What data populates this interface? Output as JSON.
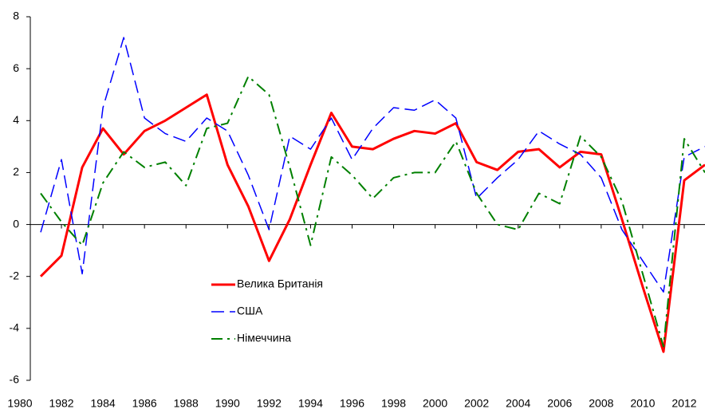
{
  "chart_data": {
    "type": "line",
    "x": [
      1981,
      1982,
      1983,
      1984,
      1985,
      1986,
      1987,
      1988,
      1989,
      1990,
      1991,
      1992,
      1993,
      1994,
      1995,
      1996,
      1997,
      1998,
      1999,
      2000,
      2001,
      2002,
      2003,
      2004,
      2005,
      2006,
      2007,
      2008,
      2009,
      2010,
      2011,
      2012,
      2013
    ],
    "series": [
      {
        "name": "Велика Британія",
        "color": "#ff0000",
        "line_style": "solid",
        "values": [
          -2.0,
          -1.2,
          2.2,
          3.7,
          2.7,
          3.6,
          4.0,
          4.5,
          5.0,
          2.3,
          0.7,
          -1.4,
          0.2,
          2.3,
          4.3,
          3.0,
          2.9,
          3.3,
          3.6,
          3.5,
          3.9,
          2.4,
          2.1,
          2.8,
          2.9,
          2.2,
          2.8,
          2.7,
          0.2,
          -2.4,
          -4.9,
          1.7,
          2.3
        ]
      },
      {
        "name": "США",
        "color": "#0000ff",
        "line_style": "dashed",
        "values": [
          -0.3,
          2.5,
          -1.9,
          4.5,
          7.2,
          4.1,
          3.5,
          3.2,
          4.1,
          3.6,
          1.9,
          -0.2,
          3.4,
          2.9,
          4.1,
          2.5,
          3.7,
          4.5,
          4.4,
          4.8,
          4.1,
          1.0,
          1.8,
          2.5,
          3.6,
          3.1,
          2.7,
          1.8,
          -0.2,
          -1.4,
          -2.6,
          2.6,
          3.0
        ]
      },
      {
        "name": "Німеччина",
        "color": "#008000",
        "line_style": "dashdot",
        "values": [
          1.2,
          0.1,
          -0.8,
          1.6,
          2.8,
          2.2,
          2.4,
          1.5,
          3.7,
          3.9,
          5.7,
          5.0,
          2.2,
          -0.8,
          2.6,
          1.9,
          1.0,
          1.8,
          2.0,
          2.0,
          3.2,
          1.2,
          0.0,
          -0.2,
          1.2,
          0.8,
          3.4,
          2.6,
          0.9,
          -1.9,
          -4.7,
          3.3,
          2.0
        ]
      }
    ],
    "xlim": [
      1980.5,
      2013
    ],
    "xticks": [
      1980,
      1982,
      1984,
      1986,
      1988,
      1990,
      1992,
      1994,
      1996,
      1998,
      2000,
      2002,
      2004,
      2006,
      2008,
      2010,
      2012
    ],
    "ylim": [
      -6,
      8
    ],
    "yticks": [
      -6,
      -4,
      -2,
      0,
      2,
      4,
      6,
      8
    ],
    "grid": false,
    "legend": "lower left"
  }
}
